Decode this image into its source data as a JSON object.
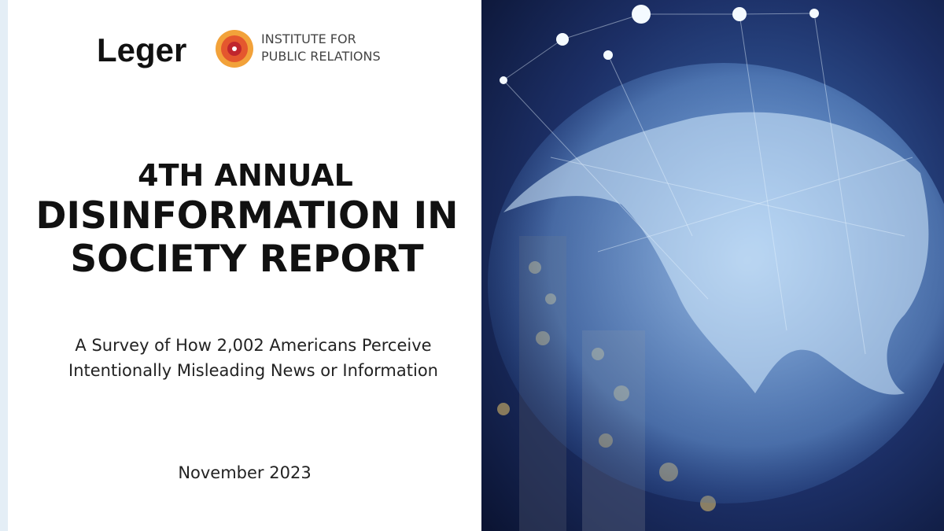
{
  "logos": {
    "leger": "Leger",
    "ipr": [
      "INSTITUTE FOR",
      "PUBLIC RELATIONS"
    ]
  },
  "title": [
    "4TH ANNUAL",
    "DISINFORMATION IN",
    "SOCIETY REPORT"
  ],
  "subtitle": [
    "A Survey of How 2,002 Americans Perceive",
    "Intentionally Misleading News or Information"
  ],
  "date": "November 2023"
}
